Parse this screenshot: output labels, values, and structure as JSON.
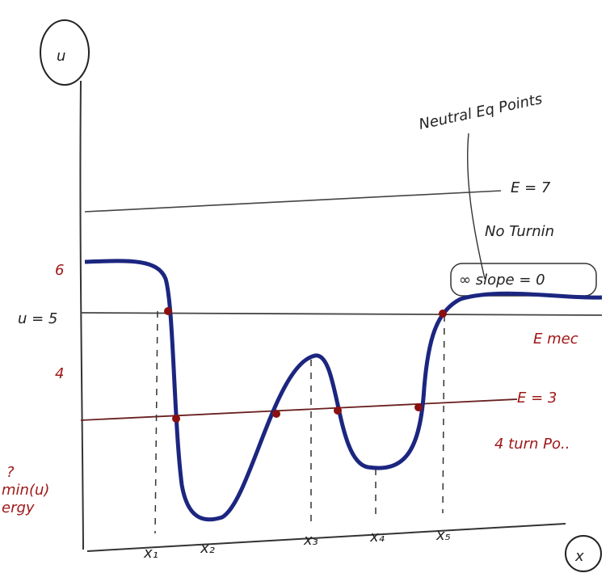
{
  "axes": {
    "y_label": "u",
    "x_label": "x"
  },
  "y_labels": [
    "6",
    "u = 5",
    "4"
  ],
  "energy_lines": [
    {
      "label": "E = 7",
      "note": "No Turnin"
    },
    {
      "label": "E mec"
    },
    {
      "label": "E = 3",
      "note": "4 turn Po.."
    }
  ],
  "x_labels": [
    "x₁",
    "x₂",
    "x₃",
    "x₄",
    "x₅"
  ],
  "annotations": {
    "neutral": "Neutral Eq Points",
    "slope": "∞ slope = 0",
    "left_note_1": "?",
    "left_note_2": "min(u)",
    "left_note_3": "ergy"
  }
}
